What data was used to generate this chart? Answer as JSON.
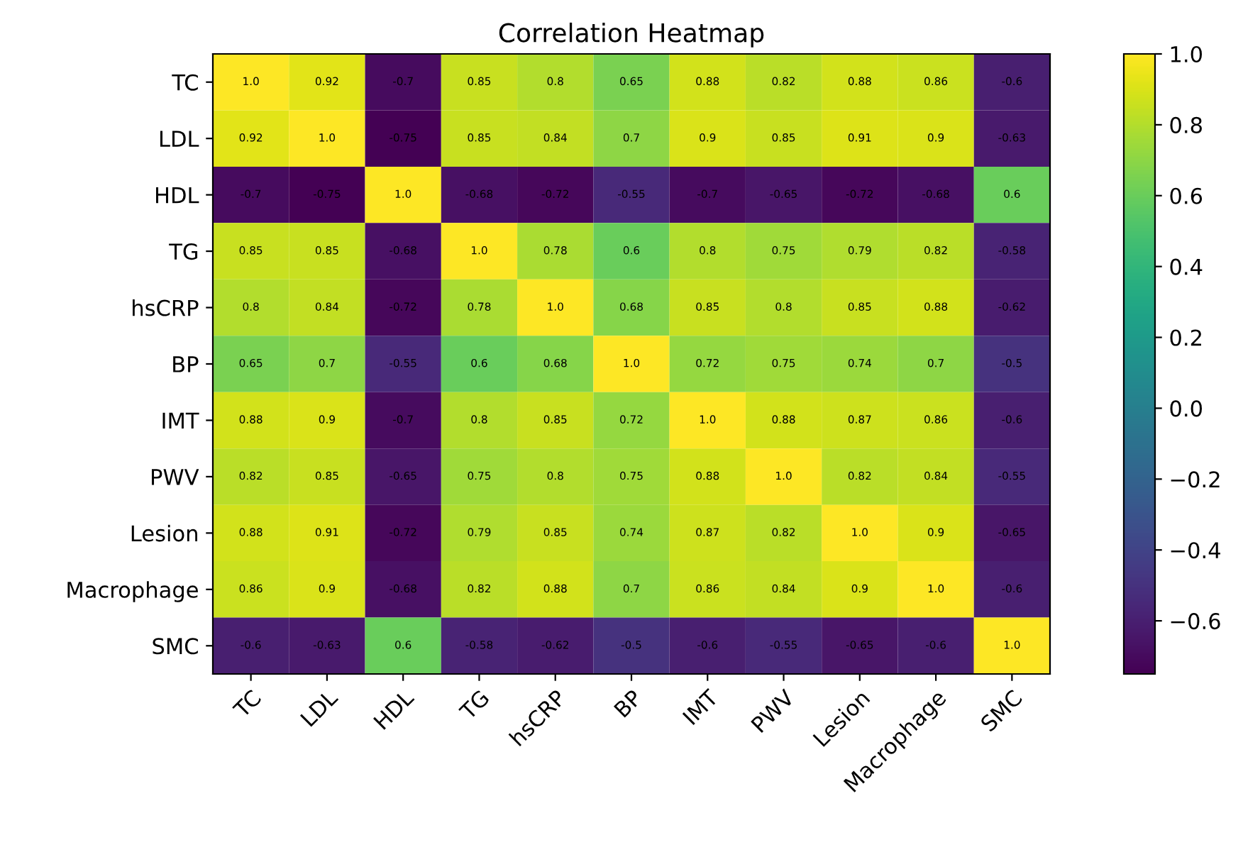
{
  "chart_data": {
    "type": "heatmap",
    "title": "Correlation Heatmap",
    "categories": [
      "TC",
      "LDL",
      "HDL",
      "TG",
      "hsCRP",
      "BP",
      "IMT",
      "PWV",
      "Lesion",
      "Macrophage",
      "SMC"
    ],
    "y_categories": [
      "TC",
      "LDL",
      "HDL",
      "TG",
      "hsCRP",
      "BP",
      "IMT",
      "PWV",
      "Lesion",
      "Macrophage",
      "SMC"
    ],
    "cells": [
      [
        1.0,
        0.92,
        -0.7,
        0.85,
        0.8,
        0.65,
        0.88,
        0.82,
        0.88,
        0.86,
        -0.6
      ],
      [
        0.92,
        1.0,
        -0.75,
        0.85,
        0.84,
        0.7,
        0.9,
        0.85,
        0.91,
        0.9,
        -0.63
      ],
      [
        -0.7,
        -0.75,
        1.0,
        -0.68,
        -0.72,
        -0.55,
        -0.7,
        -0.65,
        -0.72,
        -0.68,
        0.6
      ],
      [
        0.85,
        0.85,
        -0.68,
        1.0,
        0.78,
        0.6,
        0.8,
        0.75,
        0.79,
        0.82,
        -0.58
      ],
      [
        0.8,
        0.84,
        -0.72,
        0.78,
        1.0,
        0.68,
        0.85,
        0.8,
        0.85,
        0.88,
        -0.62
      ],
      [
        0.65,
        0.7,
        -0.55,
        0.6,
        0.68,
        1.0,
        0.72,
        0.75,
        0.74,
        0.7,
        -0.5
      ],
      [
        0.88,
        0.9,
        -0.7,
        0.8,
        0.85,
        0.72,
        1.0,
        0.88,
        0.87,
        0.86,
        -0.6
      ],
      [
        0.82,
        0.85,
        -0.65,
        0.75,
        0.8,
        0.75,
        0.88,
        1.0,
        0.82,
        0.84,
        -0.55
      ],
      [
        0.88,
        0.91,
        -0.72,
        0.79,
        0.85,
        0.74,
        0.87,
        0.82,
        1.0,
        0.9,
        -0.65
      ],
      [
        0.86,
        0.9,
        -0.68,
        0.82,
        0.88,
        0.7,
        0.86,
        0.84,
        0.9,
        1.0,
        -0.6
      ],
      [
        -0.6,
        -0.63,
        0.6,
        -0.58,
        -0.62,
        -0.5,
        -0.6,
        -0.55,
        -0.65,
        -0.6,
        1.0
      ]
    ],
    "cell_labels": [
      [
        "1.0",
        "0.92",
        "-0.7",
        "0.85",
        "0.8",
        "0.65",
        "0.88",
        "0.82",
        "0.88",
        "0.86",
        "-0.6"
      ],
      [
        "0.92",
        "1.0",
        "-0.75",
        "0.85",
        "0.84",
        "0.7",
        "0.9",
        "0.85",
        "0.91",
        "0.9",
        "-0.63"
      ],
      [
        "-0.7",
        "-0.75",
        "1.0",
        "-0.68",
        "-0.72",
        "-0.55",
        "-0.7",
        "-0.65",
        "-0.72",
        "-0.68",
        "0.6"
      ],
      [
        "0.85",
        "0.85",
        "-0.68",
        "1.0",
        "0.78",
        "0.6",
        "0.8",
        "0.75",
        "0.79",
        "0.82",
        "-0.58"
      ],
      [
        "0.8",
        "0.84",
        "-0.72",
        "0.78",
        "1.0",
        "0.68",
        "0.85",
        "0.8",
        "0.85",
        "0.88",
        "-0.62"
      ],
      [
        "0.65",
        "0.7",
        "-0.55",
        "0.6",
        "0.68",
        "1.0",
        "0.72",
        "0.75",
        "0.74",
        "0.7",
        "-0.5"
      ],
      [
        "0.88",
        "0.9",
        "-0.7",
        "0.8",
        "0.85",
        "0.72",
        "1.0",
        "0.88",
        "0.87",
        "0.86",
        "-0.6"
      ],
      [
        "0.82",
        "0.85",
        "-0.65",
        "0.75",
        "0.8",
        "0.75",
        "0.88",
        "1.0",
        "0.82",
        "0.84",
        "-0.55"
      ],
      [
        "0.88",
        "0.91",
        "-0.72",
        "0.79",
        "0.85",
        "0.74",
        "0.87",
        "0.82",
        "1.0",
        "0.9",
        "-0.65"
      ],
      [
        "0.86",
        "0.9",
        "-0.68",
        "0.82",
        "0.88",
        "0.7",
        "0.86",
        "0.84",
        "0.9",
        "1.0",
        "-0.6"
      ],
      [
        "-0.6",
        "-0.63",
        "0.6",
        "-0.58",
        "-0.62",
        "-0.5",
        "-0.6",
        "-0.55",
        "-0.65",
        "-0.6",
        "1.0"
      ]
    ],
    "clim": [
      -0.75,
      1.0
    ],
    "cticks": [
      -0.6,
      -0.4,
      -0.2,
      {
        "value": 0,
        "label": "0.0"
      },
      0.2,
      0.4,
      0.6,
      0.8,
      {
        "value": 1,
        "label": "1.0"
      }
    ],
    "data_labels": true
  }
}
